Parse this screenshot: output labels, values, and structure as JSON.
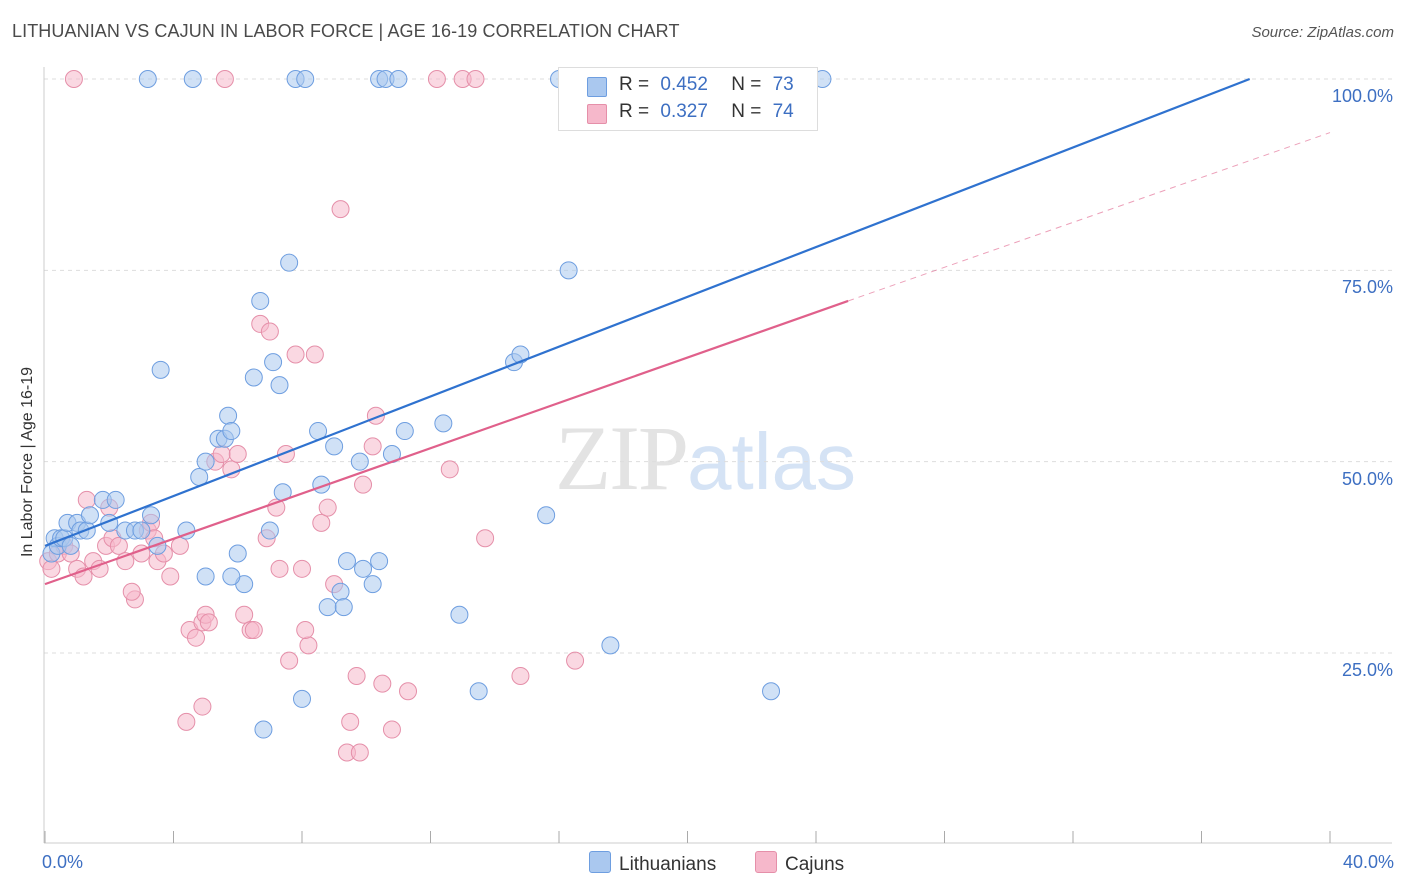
{
  "title": "LITHUANIAN VS CAJUN IN LABOR FORCE | AGE 16-19 CORRELATION CHART",
  "source": "Source: ZipAtlas.com",
  "watermark": {
    "zip": "ZIP",
    "atlas": "atlas"
  },
  "colors": {
    "blue_fill": "#aac8ef",
    "blue_stroke": "#6e9ee0",
    "blue_line": "#2f72cf",
    "pink_fill": "#f6b8cb",
    "pink_stroke": "#e58fa9",
    "pink_line": "#e0608b",
    "axis_label": "#3d6fc2",
    "grid": "#dddddd"
  },
  "stats": [
    {
      "r_label": "R =",
      "r_value": "0.452",
      "n_label": "N =",
      "n_value": "73"
    },
    {
      "r_label": "R =",
      "r_value": "0.327",
      "n_label": "N =",
      "n_value": "74"
    }
  ],
  "legend": [
    {
      "name": "Lithuanians"
    },
    {
      "name": "Cajuns"
    }
  ],
  "chart_data": {
    "type": "scatter",
    "title": "LITHUANIAN VS CAJUN IN LABOR FORCE | AGE 16-19 CORRELATION CHART",
    "xlabel": "",
    "ylabel": "In Labor Force | Age 16-19",
    "xlim": [
      0,
      40
    ],
    "ylim": [
      0,
      102
    ],
    "x_tick_labels": [
      "0.0%",
      "40.0%"
    ],
    "y_tick_labels": [
      "25.0%",
      "50.0%",
      "75.0%",
      "100.0%"
    ],
    "y_ticks": [
      25,
      50,
      75,
      100
    ],
    "grid": true,
    "legend_position": "bottom-center",
    "series": [
      {
        "name": "Lithuanians",
        "points": [
          [
            0.2,
            38
          ],
          [
            0.3,
            40
          ],
          [
            0.4,
            39
          ],
          [
            0.5,
            40
          ],
          [
            0.6,
            40
          ],
          [
            0.7,
            42
          ],
          [
            0.8,
            39
          ],
          [
            1.0,
            42
          ],
          [
            1.1,
            41
          ],
          [
            1.3,
            41
          ],
          [
            1.4,
            43
          ],
          [
            1.8,
            45
          ],
          [
            2.0,
            42
          ],
          [
            2.2,
            45
          ],
          [
            2.5,
            41
          ],
          [
            2.8,
            41
          ],
          [
            3.0,
            41
          ],
          [
            3.3,
            43
          ],
          [
            3.5,
            39
          ],
          [
            3.6,
            62
          ],
          [
            4.4,
            41
          ],
          [
            4.8,
            48
          ],
          [
            5.0,
            50
          ],
          [
            5.4,
            53
          ],
          [
            5.6,
            53
          ],
          [
            5.7,
            56
          ],
          [
            5.8,
            54
          ],
          [
            6.0,
            38
          ],
          [
            6.2,
            34
          ],
          [
            6.5,
            61
          ],
          [
            6.7,
            71
          ],
          [
            7.0,
            41
          ],
          [
            7.1,
            63
          ],
          [
            7.3,
            60
          ],
          [
            7.4,
            46
          ],
          [
            7.6,
            76
          ],
          [
            8.0,
            19
          ],
          [
            8.5,
            54
          ],
          [
            8.6,
            47
          ],
          [
            8.8,
            31
          ],
          [
            9.0,
            52
          ],
          [
            9.2,
            33
          ],
          [
            9.3,
            31
          ],
          [
            9.4,
            37
          ],
          [
            9.8,
            50
          ],
          [
            9.9,
            36
          ],
          [
            10.2,
            34
          ],
          [
            10.8,
            51
          ],
          [
            11.2,
            54
          ],
          [
            12.4,
            55
          ],
          [
            13.5,
            20
          ],
          [
            14.6,
            63
          ],
          [
            14.8,
            64
          ],
          [
            15.6,
            43
          ],
          [
            16.3,
            75
          ],
          [
            17.6,
            26
          ],
          [
            22.6,
            20
          ],
          [
            24.2,
            100
          ],
          [
            7.8,
            100
          ],
          [
            8.1,
            100
          ],
          [
            10.4,
            100
          ],
          [
            10.6,
            100
          ],
          [
            16.0,
            100
          ],
          [
            18.6,
            100
          ],
          [
            21.6,
            100
          ],
          [
            5.0,
            35
          ],
          [
            5.8,
            35
          ],
          [
            4.6,
            100
          ],
          [
            3.2,
            100
          ],
          [
            12.9,
            30
          ],
          [
            11.0,
            100
          ],
          [
            6.8,
            15
          ],
          [
            10.4,
            37
          ]
        ]
      },
      {
        "name": "Cajuns",
        "points": [
          [
            0.1,
            37
          ],
          [
            0.2,
            36
          ],
          [
            0.4,
            38
          ],
          [
            0.6,
            39
          ],
          [
            0.8,
            38
          ],
          [
            1.0,
            36
          ],
          [
            1.2,
            35
          ],
          [
            1.5,
            37
          ],
          [
            1.7,
            36
          ],
          [
            1.9,
            39
          ],
          [
            2.0,
            44
          ],
          [
            2.1,
            40
          ],
          [
            2.3,
            39
          ],
          [
            2.5,
            37
          ],
          [
            2.8,
            32
          ],
          [
            3.0,
            38
          ],
          [
            3.2,
            41
          ],
          [
            3.3,
            42
          ],
          [
            3.5,
            37
          ],
          [
            3.7,
            38
          ],
          [
            3.9,
            35
          ],
          [
            4.2,
            39
          ],
          [
            4.5,
            28
          ],
          [
            4.7,
            27
          ],
          [
            4.9,
            29
          ],
          [
            5.0,
            30
          ],
          [
            5.1,
            29
          ],
          [
            5.3,
            50
          ],
          [
            5.5,
            51
          ],
          [
            5.8,
            49
          ],
          [
            6.0,
            51
          ],
          [
            6.2,
            30
          ],
          [
            6.4,
            28
          ],
          [
            6.5,
            28
          ],
          [
            6.7,
            68
          ],
          [
            6.9,
            40
          ],
          [
            7.0,
            67
          ],
          [
            7.2,
            44
          ],
          [
            7.5,
            51
          ],
          [
            7.8,
            64
          ],
          [
            8.0,
            36
          ],
          [
            8.2,
            26
          ],
          [
            8.4,
            64
          ],
          [
            8.6,
            42
          ],
          [
            8.8,
            44
          ],
          [
            9.0,
            34
          ],
          [
            9.2,
            83
          ],
          [
            9.4,
            12
          ],
          [
            9.5,
            16
          ],
          [
            9.7,
            22
          ],
          [
            9.8,
            12
          ],
          [
            9.9,
            47
          ],
          [
            10.2,
            52
          ],
          [
            10.3,
            56
          ],
          [
            10.5,
            21
          ],
          [
            10.8,
            15
          ],
          [
            11.3,
            20
          ],
          [
            12.6,
            49
          ],
          [
            13.0,
            100
          ],
          [
            13.4,
            100
          ],
          [
            13.7,
            40
          ],
          [
            14.8,
            22
          ],
          [
            16.5,
            24
          ],
          [
            4.9,
            18
          ],
          [
            4.4,
            16
          ],
          [
            7.6,
            24
          ],
          [
            8.1,
            28
          ],
          [
            7.3,
            36
          ],
          [
            5.6,
            100
          ],
          [
            1.3,
            45
          ],
          [
            2.7,
            33
          ],
          [
            3.4,
            40
          ],
          [
            0.9,
            100
          ],
          [
            12.2,
            100
          ]
        ]
      }
    ],
    "trendlines": [
      {
        "series": "Lithuanians",
        "x": [
          0,
          37.5
        ],
        "y": [
          39,
          100
        ],
        "style": "solid"
      },
      {
        "series": "Cajuns",
        "x": [
          0,
          25
        ],
        "y": [
          34,
          71
        ],
        "style": "solid"
      },
      {
        "series": "Cajuns",
        "x": [
          25,
          40
        ],
        "y": [
          71,
          93
        ],
        "style": "dashed"
      }
    ]
  }
}
